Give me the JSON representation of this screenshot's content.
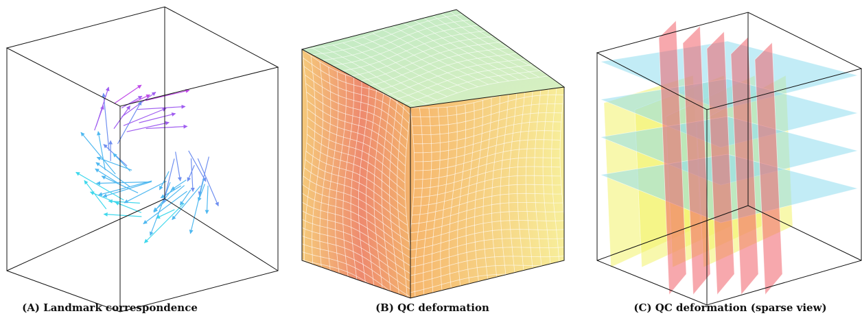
{
  "panels": [
    {
      "caption": "(A) Landmark correspondence"
    },
    {
      "caption": "(B) QC deformation"
    },
    {
      "caption": "(C) QC deformation (sparse view)"
    }
  ]
}
